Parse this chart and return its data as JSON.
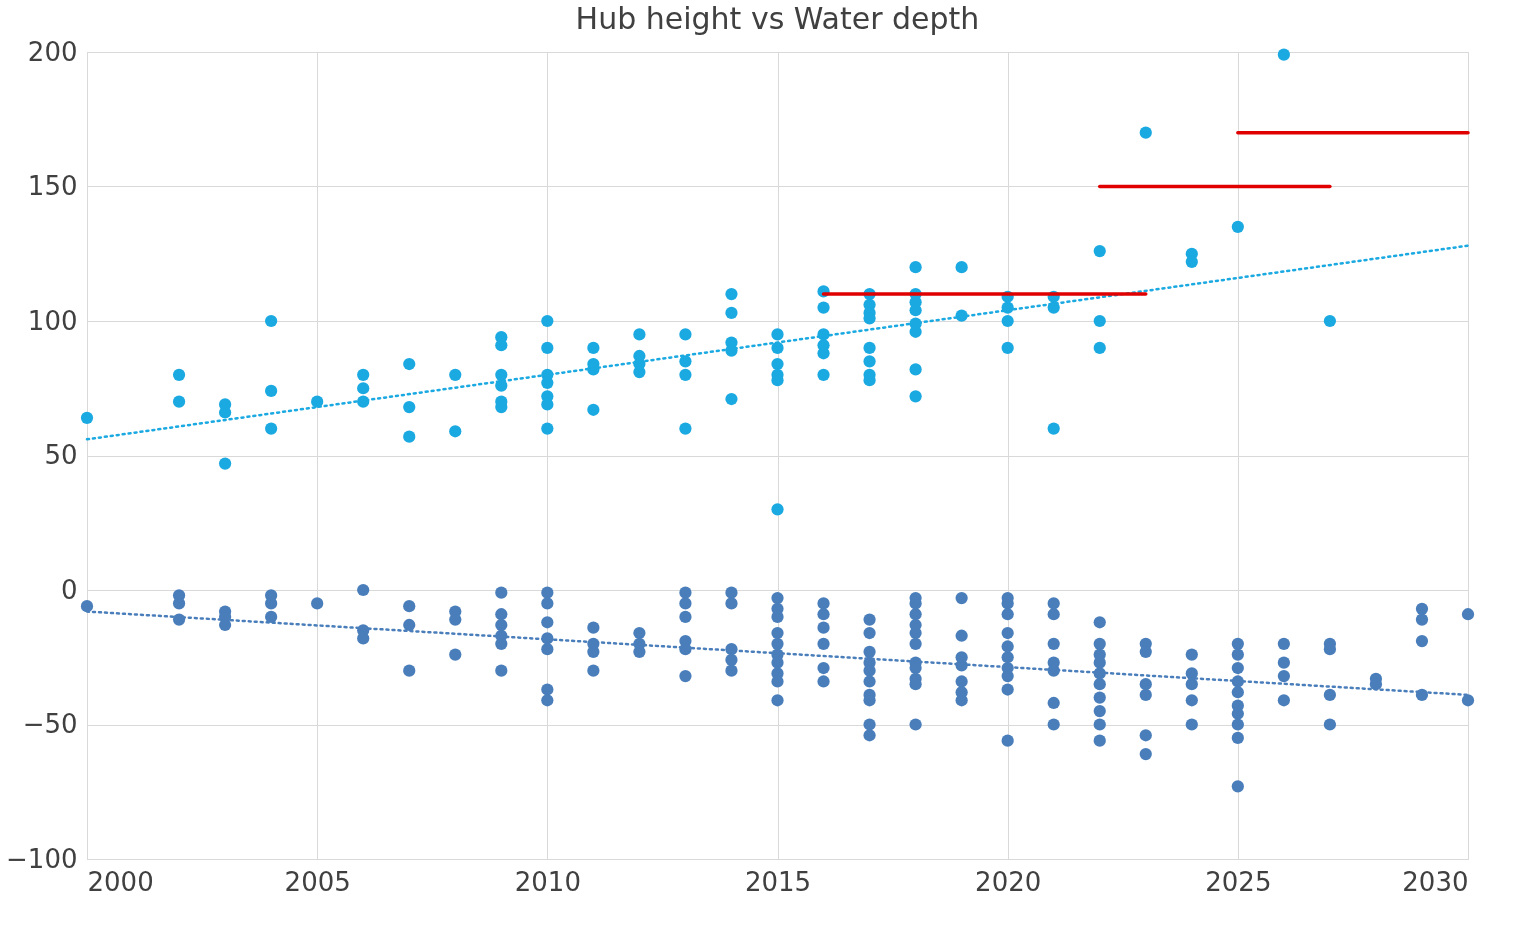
{
  "chart_data": {
    "type": "scatter",
    "title": "Hub height vs Water depth",
    "xlim": [
      2000,
      2030
    ],
    "xticks": [
      2000,
      2005,
      2010,
      2015,
      2020,
      2025,
      2030
    ],
    "ylim": [
      -100,
      200
    ],
    "yticks": [
      -100,
      -50,
      0,
      50,
      100,
      150,
      200
    ],
    "grid": true,
    "marker": "circle",
    "series": [
      {
        "color": "#1ba9e1",
        "x": [
          2000,
          2002,
          2002,
          2003,
          2003,
          2003,
          2004,
          2004,
          2004,
          2005,
          2006,
          2006,
          2006,
          2007,
          2007,
          2007,
          2008,
          2008,
          2009,
          2009,
          2009,
          2009,
          2009,
          2009,
          2010,
          2010,
          2010,
          2010,
          2010,
          2010,
          2010,
          2011,
          2011,
          2011,
          2011,
          2012,
          2012,
          2012,
          2012,
          2013,
          2013,
          2013,
          2013,
          2014,
          2014,
          2014,
          2014,
          2014,
          2015,
          2015,
          2015,
          2015,
          2015,
          2015,
          2016,
          2016,
          2016,
          2016,
          2016,
          2016,
          2017,
          2017,
          2017,
          2017,
          2017,
          2017,
          2017,
          2017,
          2018,
          2018,
          2018,
          2018,
          2018,
          2018,
          2018,
          2018,
          2019,
          2019,
          2020,
          2020,
          2020,
          2020,
          2021,
          2021,
          2021,
          2022,
          2022,
          2022,
          2023,
          2024,
          2024,
          2025,
          2026,
          2027
        ],
        "values": [
          64,
          80,
          70,
          69,
          66,
          47,
          100,
          74,
          60,
          70,
          80,
          75,
          70,
          84,
          68,
          57,
          80,
          59,
          94,
          91,
          80,
          76,
          70,
          68,
          100,
          90,
          80,
          77,
          72,
          69,
          60,
          90,
          84,
          82,
          67,
          95,
          87,
          84,
          81,
          95,
          85,
          80,
          60,
          110,
          103,
          92,
          89,
          71,
          95,
          90,
          84,
          80,
          78,
          30,
          111,
          105,
          95,
          91,
          88,
          80,
          110,
          106,
          103,
          101,
          90,
          85,
          80,
          78,
          120,
          110,
          107,
          104,
          99,
          96,
          82,
          72,
          120,
          102,
          109,
          105,
          100,
          90,
          109,
          105,
          60,
          126,
          100,
          90,
          170,
          125,
          122,
          135,
          199,
          100
        ]
      },
      {
        "color": "#4a7ebb",
        "x": [
          2000,
          2002,
          2002,
          2002,
          2003,
          2003,
          2003,
          2004,
          2004,
          2004,
          2005,
          2006,
          2006,
          2006,
          2007,
          2007,
          2007,
          2008,
          2008,
          2008,
          2009,
          2009,
          2009,
          2009,
          2009,
          2009,
          2010,
          2010,
          2010,
          2010,
          2010,
          2010,
          2010,
          2011,
          2011,
          2011,
          2011,
          2012,
          2012,
          2012,
          2013,
          2013,
          2013,
          2013,
          2013,
          2013,
          2014,
          2014,
          2014,
          2014,
          2014,
          2015,
          2015,
          2015,
          2015,
          2015,
          2015,
          2015,
          2015,
          2015,
          2015,
          2016,
          2016,
          2016,
          2016,
          2016,
          2016,
          2017,
          2017,
          2017,
          2017,
          2017,
          2017,
          2017,
          2017,
          2017,
          2017,
          2018,
          2018,
          2018,
          2018,
          2018,
          2018,
          2018,
          2018,
          2018,
          2018,
          2018,
          2019,
          2019,
          2019,
          2019,
          2019,
          2019,
          2019,
          2020,
          2020,
          2020,
          2020,
          2020,
          2020,
          2020,
          2020,
          2020,
          2020,
          2021,
          2021,
          2021,
          2021,
          2021,
          2021,
          2021,
          2022,
          2022,
          2022,
          2022,
          2022,
          2022,
          2022,
          2022,
          2022,
          2022,
          2023,
          2023,
          2023,
          2023,
          2023,
          2023,
          2024,
          2024,
          2024,
          2024,
          2024,
          2025,
          2025,
          2025,
          2025,
          2025,
          2025,
          2025,
          2025,
          2025,
          2025,
          2026,
          2026,
          2026,
          2026,
          2027,
          2027,
          2027,
          2027,
          2028,
          2028,
          2029,
          2029,
          2029,
          2029,
          2030,
          2030
        ],
        "values": [
          -6,
          -2,
          -5,
          -11,
          -8,
          -10,
          -13,
          -2,
          -5,
          -10,
          -5,
          0,
          -15,
          -18,
          -6,
          -13,
          -30,
          -8,
          -11,
          -24,
          -1,
          -9,
          -13,
          -17,
          -20,
          -30,
          -1,
          -5,
          -12,
          -18,
          -22,
          -37,
          -41,
          -14,
          -20,
          -23,
          -30,
          -16,
          -20,
          -23,
          -1,
          -5,
          -10,
          -19,
          -22,
          -32,
          -1,
          -5,
          -22,
          -26,
          -30,
          -3,
          -7,
          -10,
          -16,
          -20,
          -24,
          -27,
          -31,
          -34,
          -41,
          -5,
          -9,
          -14,
          -20,
          -29,
          -34,
          -11,
          -16,
          -23,
          -27,
          -30,
          -34,
          -39,
          -41,
          -50,
          -54,
          -3,
          -5,
          -9,
          -13,
          -16,
          -20,
          -27,
          -29,
          -33,
          -35,
          -50,
          -3,
          -17,
          -25,
          -28,
          -34,
          -38,
          -41,
          -3,
          -5,
          -9,
          -16,
          -21,
          -25,
          -29,
          -32,
          -37,
          -56,
          -5,
          -9,
          -20,
          -27,
          -30,
          -42,
          -50,
          -12,
          -20,
          -24,
          -27,
          -31,
          -35,
          -40,
          -45,
          -50,
          -56,
          -20,
          -23,
          -35,
          -39,
          -54,
          -61,
          -24,
          -31,
          -35,
          -41,
          -50,
          -20,
          -24,
          -29,
          -34,
          -38,
          -43,
          -46,
          -50,
          -55,
          -73,
          -20,
          -27,
          -32,
          -41,
          -20,
          -22,
          -39,
          -50,
          -33,
          -35,
          -7,
          -11,
          -19,
          -39,
          -9,
          -41
        ]
      },
      {
        "type": "line",
        "marker": "none",
        "color": "#1ba9e1",
        "line_style": "dotted",
        "x": [
          2000,
          2030
        ],
        "values": [
          56,
          128
        ]
      },
      {
        "type": "line",
        "marker": "none",
        "color": "#4a7ebb",
        "line_style": "dotted",
        "x": [
          2000,
          2030
        ],
        "values": [
          -8,
          -39
        ]
      },
      {
        "type": "line",
        "marker": "none",
        "line_style": "solid",
        "color": "#e00000",
        "x": [
          2016,
          2023
        ],
        "values": [
          110,
          110
        ]
      },
      {
        "type": "line",
        "marker": "none",
        "line_style": "solid",
        "color": "#e00000",
        "x": [
          2022,
          2027
        ],
        "values": [
          150,
          150
        ]
      },
      {
        "type": "line",
        "marker": "none",
        "line_style": "solid",
        "color": "#e00000",
        "x": [
          2025,
          2030
        ],
        "values": [
          170,
          170
        ]
      }
    ]
  }
}
